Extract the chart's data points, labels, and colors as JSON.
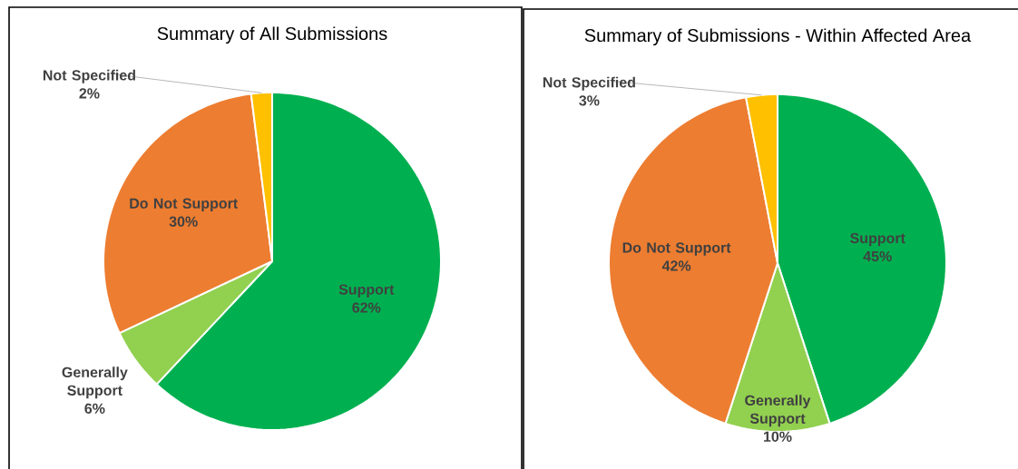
{
  "chart_data": [
    {
      "type": "pie",
      "title": "Summary of All Submissions",
      "categories": [
        "Support",
        "Generally Support",
        "Do Not Support",
        "Not Specified"
      ],
      "values": [
        62,
        6,
        30,
        2
      ],
      "value_labels": [
        "62%",
        "6%",
        "30%",
        "2%"
      ],
      "colors": [
        "#00b050",
        "#92d050",
        "#ed7d31",
        "#ffc000"
      ]
    },
    {
      "type": "pie",
      "title": "Summary of Submissions - Within Affected Area",
      "categories": [
        "Support",
        "Generally Support",
        "Do Not Support",
        "Not Specified"
      ],
      "values": [
        45,
        10,
        42,
        3
      ],
      "value_labels": [
        "45%",
        "10%",
        "42%",
        "3%"
      ],
      "colors": [
        "#00b050",
        "#92d050",
        "#ed7d31",
        "#ffc000"
      ]
    }
  ]
}
